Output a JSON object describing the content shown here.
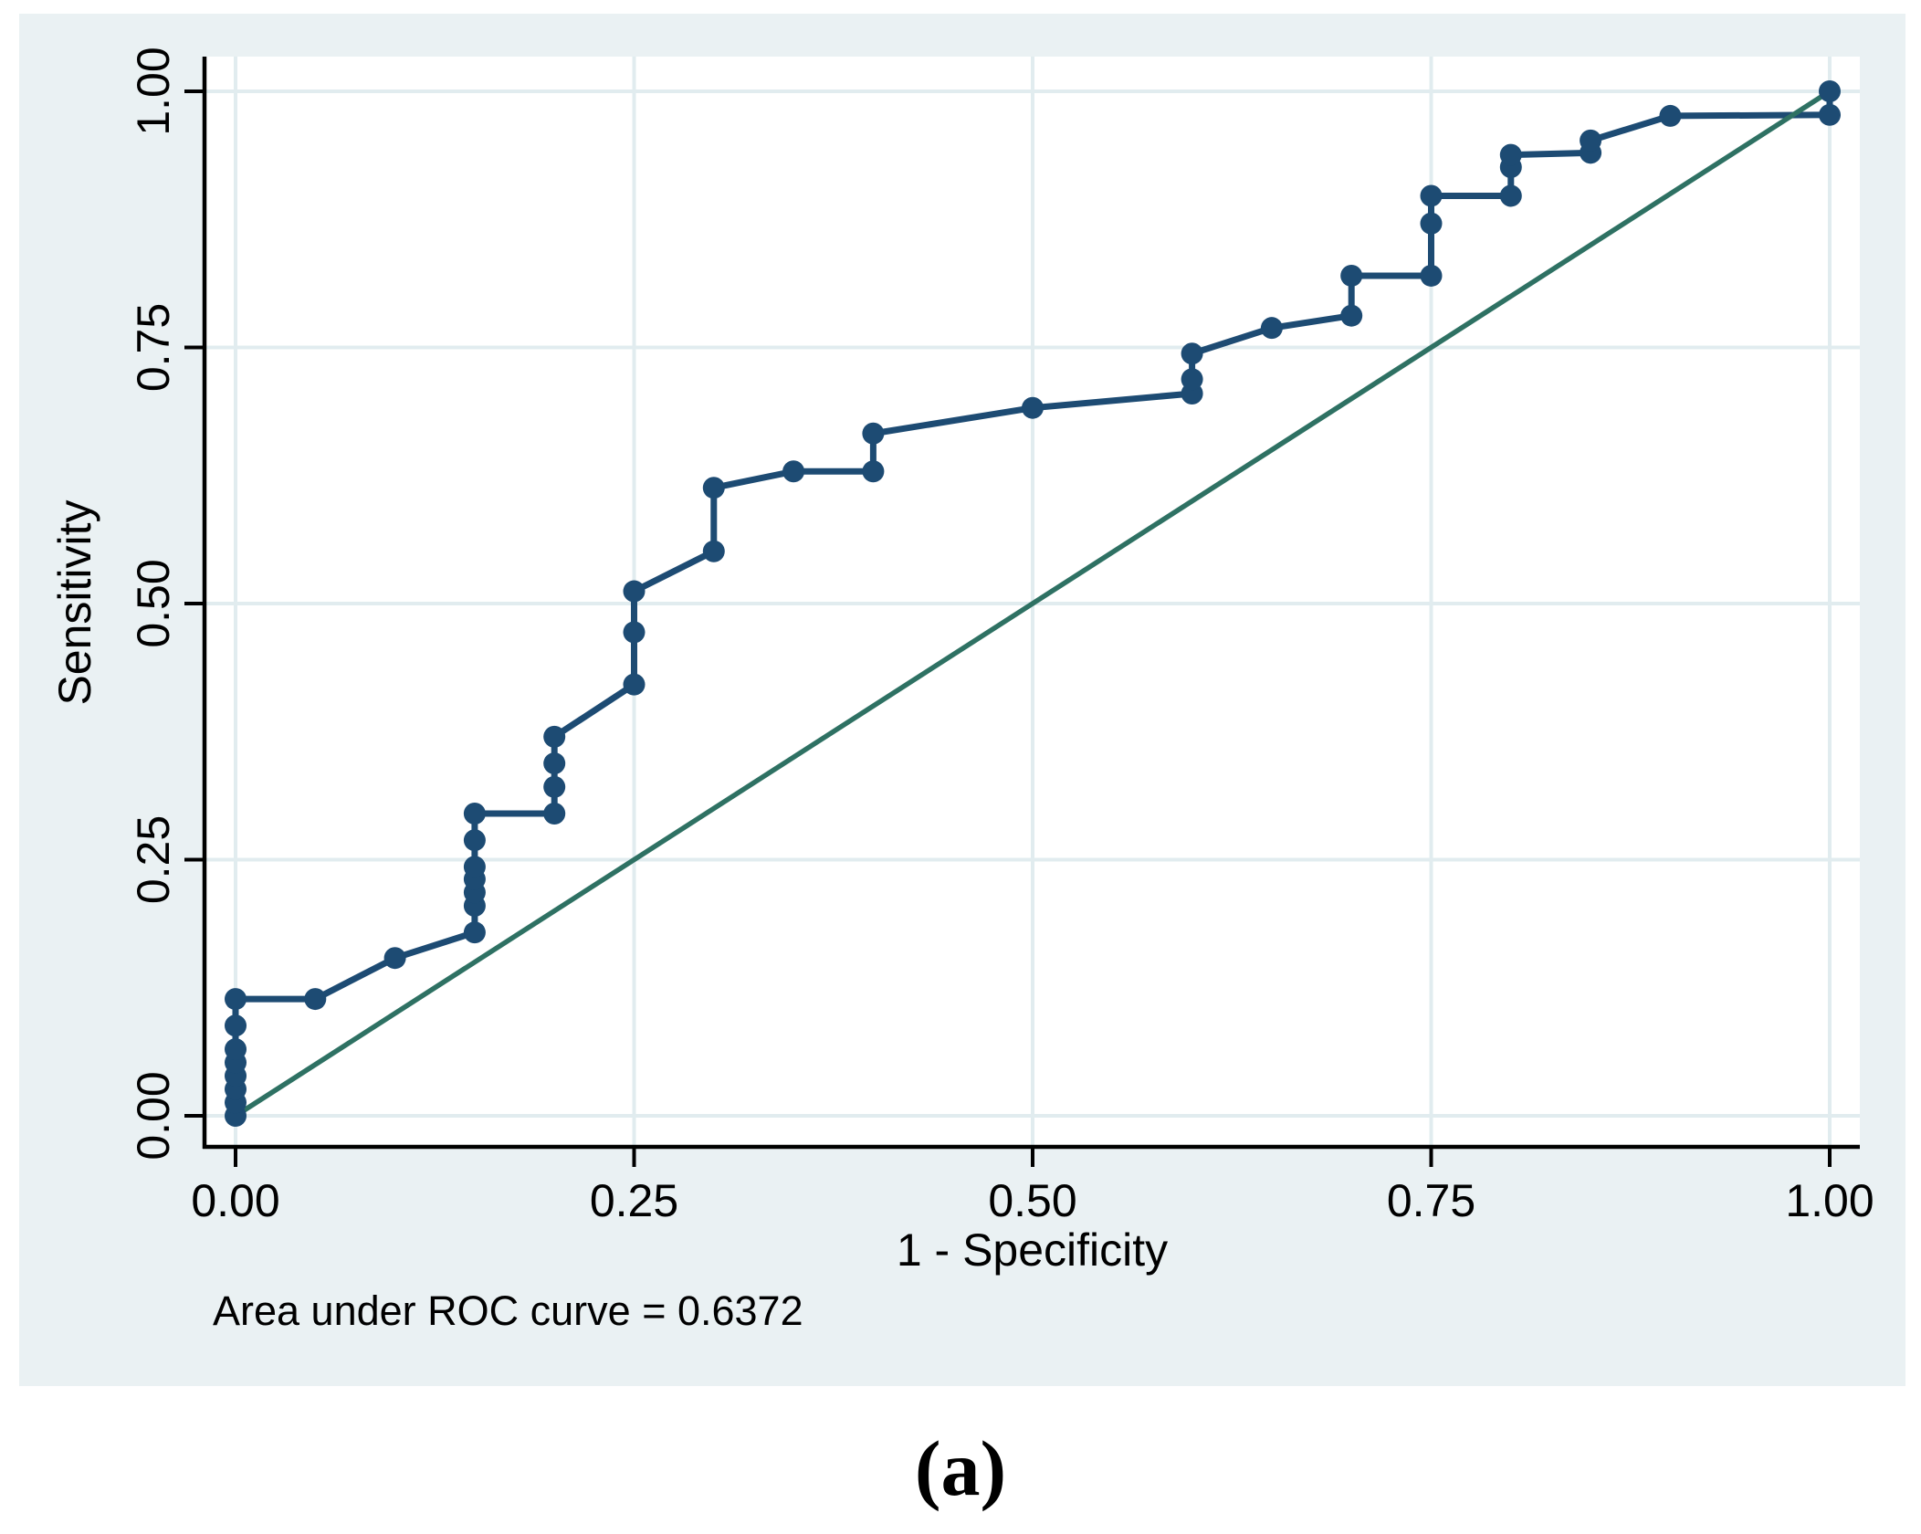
{
  "caption": "(a)",
  "chart_data": {
    "type": "line",
    "title": "",
    "xlabel": "1 - Specificity",
    "ylabel": "Sensitivity",
    "xlim": [
      0,
      1
    ],
    "ylim": [
      0,
      1
    ],
    "grid": true,
    "legend_position": "none",
    "annotation": "Area under ROC curve = 0.6372",
    "auc_value": 0.6372,
    "x_ticks": {
      "values": [
        0,
        0.25,
        0.5,
        0.75,
        1.0
      ],
      "labels": [
        "0.00",
        "0.25",
        "0.50",
        "0.75",
        "1.00"
      ]
    },
    "y_ticks": {
      "values": [
        0,
        0.25,
        0.5,
        0.75,
        1.0
      ],
      "labels": [
        "0.00",
        "0.25",
        "0.50",
        "0.75",
        "1.00"
      ]
    },
    "colors": {
      "roc_line": "#1d4b73",
      "marker": "#1d4b73",
      "reference_line": "#2e7163",
      "panel_background": "#eaf1f3",
      "plot_background": "#ffffff",
      "gridline": "#e1ecef",
      "axis": "#000000",
      "text": "#000000"
    },
    "series": [
      {
        "name": "ROC curve",
        "style": "line+markers",
        "points": [
          [
            0.0,
            0.0
          ],
          [
            0.0,
            0.013
          ],
          [
            0.0,
            0.026
          ],
          [
            0.0,
            0.039
          ],
          [
            0.0,
            0.052
          ],
          [
            0.0,
            0.065
          ],
          [
            0.0,
            0.088
          ],
          [
            0.0,
            0.114
          ],
          [
            0.05,
            0.114
          ],
          [
            0.1,
            0.154
          ],
          [
            0.15,
            0.179
          ],
          [
            0.15,
            0.205
          ],
          [
            0.15,
            0.218
          ],
          [
            0.15,
            0.231
          ],
          [
            0.15,
            0.243
          ],
          [
            0.15,
            0.269
          ],
          [
            0.15,
            0.295
          ],
          [
            0.2,
            0.295
          ],
          [
            0.2,
            0.321
          ],
          [
            0.2,
            0.344
          ],
          [
            0.2,
            0.37
          ],
          [
            0.25,
            0.421
          ],
          [
            0.25,
            0.472
          ],
          [
            0.25,
            0.512
          ],
          [
            0.3,
            0.551
          ],
          [
            0.3,
            0.613
          ],
          [
            0.35,
            0.629
          ],
          [
            0.4,
            0.629
          ],
          [
            0.4,
            0.666
          ],
          [
            0.5,
            0.691
          ],
          [
            0.6,
            0.705
          ],
          [
            0.6,
            0.719
          ],
          [
            0.6,
            0.744
          ],
          [
            0.65,
            0.769
          ],
          [
            0.7,
            0.781
          ],
          [
            0.7,
            0.82
          ],
          [
            0.75,
            0.82
          ],
          [
            0.75,
            0.871
          ],
          [
            0.75,
            0.898
          ],
          [
            0.8,
            0.898
          ],
          [
            0.8,
            0.926
          ],
          [
            0.8,
            0.938
          ],
          [
            0.85,
            0.94
          ],
          [
            0.85,
            0.952
          ],
          [
            0.9,
            0.976
          ],
          [
            1.0,
            0.977
          ],
          [
            1.0,
            1.0
          ]
        ]
      },
      {
        "name": "Reference diagonal",
        "style": "line",
        "points": [
          [
            0,
            0
          ],
          [
            1,
            1
          ]
        ]
      }
    ]
  }
}
